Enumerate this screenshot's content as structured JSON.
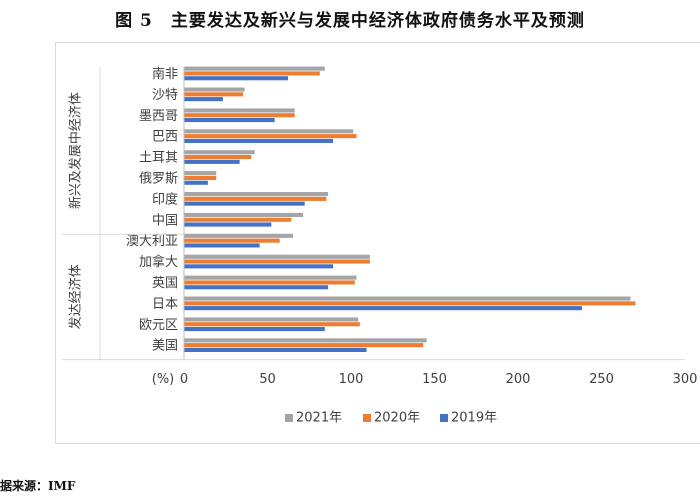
{
  "title": "图 5　主要发达及新兴与发展中经济体政府债务水平及预测",
  "source": "据来源：IMF",
  "chart_data": {
    "type": "bar",
    "orientation": "horizontal",
    "groups": [
      {
        "label": "新兴及发展中经济体",
        "categories": [
          "南非",
          "沙特",
          "墨西哥",
          "巴西",
          "土耳其",
          "俄罗斯",
          "印度",
          "中国"
        ]
      },
      {
        "label": "发达经济体",
        "categories": [
          "澳大利亚",
          "加拿大",
          "英国",
          "日本",
          "欧元区",
          "美国"
        ]
      }
    ],
    "categories": [
      "南非",
      "沙特",
      "墨西哥",
      "巴西",
      "土耳其",
      "俄罗斯",
      "印度",
      "中国",
      "澳大利亚",
      "加拿大",
      "英国",
      "日本",
      "欧元区",
      "美国"
    ],
    "series": [
      {
        "name": "2021年",
        "color": "#a5a5a5",
        "values": [
          84,
          36,
          66,
          101,
          42,
          19,
          86,
          71,
          65,
          111,
          103,
          267,
          104,
          145
        ]
      },
      {
        "name": "2020年",
        "color": "#ed7d31",
        "values": [
          81,
          35,
          66,
          103,
          40,
          19,
          85,
          64,
          57,
          111,
          102,
          270,
          105,
          143
        ]
      },
      {
        "name": "2019年",
        "color": "#4472c4",
        "values": [
          62,
          23,
          54,
          89,
          33,
          14,
          72,
          52,
          45,
          89,
          86,
          238,
          84,
          109
        ]
      }
    ],
    "xlim": [
      0,
      300
    ],
    "xticks": [
      0,
      50,
      100,
      150,
      200,
      250,
      300
    ],
    "xunit": "(%)",
    "legend_position": "bottom"
  }
}
